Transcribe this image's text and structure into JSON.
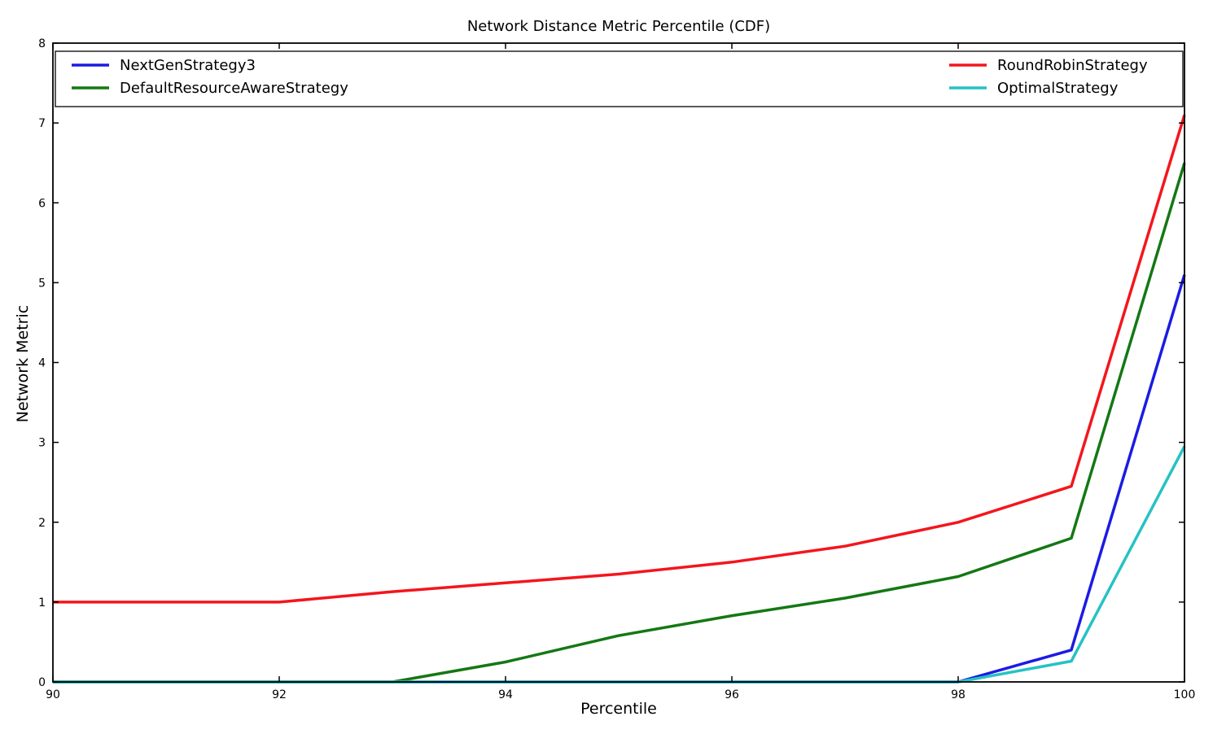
{
  "chart_data": {
    "type": "line",
    "title": "Network Distance Metric Percentile (CDF)",
    "xlabel": "Percentile",
    "ylabel": "Network Metric",
    "xlim": [
      90,
      100
    ],
    "ylim": [
      0,
      8
    ],
    "xticks": [
      "90",
      "92",
      "94",
      "96",
      "98",
      "100"
    ],
    "yticks": [
      "0",
      "1",
      "2",
      "3",
      "4",
      "5",
      "6",
      "7",
      "8"
    ],
    "grid": "off",
    "legend_position": "top full-width box inside axes, two columns",
    "series": [
      {
        "name": "NextGenStrategy3",
        "color": "#1b1be4",
        "x": [
          90,
          98,
          99,
          100
        ],
        "y": [
          0,
          0,
          0.4,
          5.1
        ]
      },
      {
        "name": "DefaultResourceAwareStrategy",
        "color": "#147814",
        "x": [
          90,
          93,
          94,
          95,
          96,
          97,
          98,
          99,
          100
        ],
        "y": [
          0,
          0,
          0.25,
          0.58,
          0.83,
          1.05,
          1.32,
          1.8,
          6.5
        ]
      },
      {
        "name": "RoundRobinStrategy",
        "color": "#f3161c",
        "x": [
          90,
          92,
          93,
          94,
          95,
          96,
          97,
          98,
          99,
          100
        ],
        "y": [
          1.0,
          1.0,
          1.13,
          1.24,
          1.35,
          1.5,
          1.7,
          2.0,
          2.45,
          7.1
        ]
      },
      {
        "name": "OptimalStrategy",
        "color": "#26c2c4",
        "x": [
          90,
          98,
          99,
          100
        ],
        "y": [
          0,
          0,
          0.26,
          2.95
        ]
      }
    ],
    "colors": {
      "axis": "#000000",
      "background": "#ffffff",
      "legend_border": "#000000"
    }
  }
}
